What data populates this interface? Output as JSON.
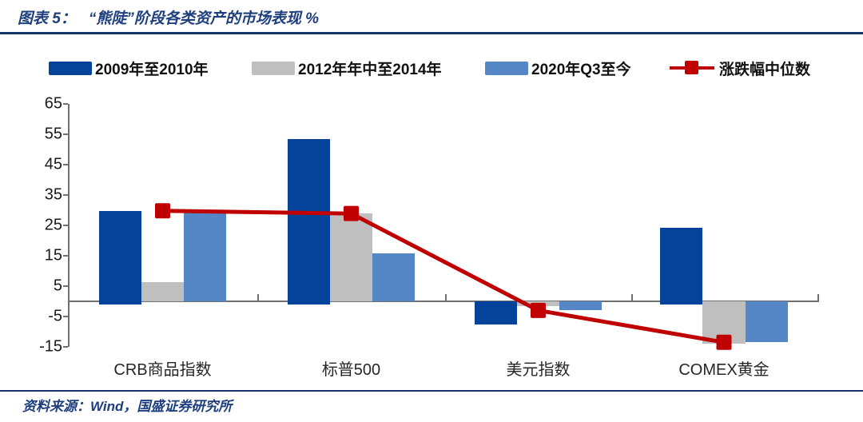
{
  "header": {
    "label": "图表 5：",
    "title": "“熊陡”阶段各类资产的市场表现 %"
  },
  "colors": {
    "bar_2009_2010": "#05429a",
    "bar_2012_2014": "#bfbfbf",
    "bar_2020q3": "#5586c5",
    "median_line": "#c00000",
    "accent_navy": "#17356b",
    "axis_gray": "#6f6f6f"
  },
  "chart_data": {
    "type": "bar",
    "categories": [
      "CRB商品指数",
      "标普500",
      "美元指数",
      "COMEX黄金"
    ],
    "series": [
      {
        "name": "2009年至2010年",
        "type": "bar",
        "color": "#05429a",
        "values": [
          29.8,
          53.5,
          -7.5,
          24.2
        ]
      },
      {
        "name": "2012年年中至2014年",
        "type": "bar",
        "color": "#bfbfbf",
        "values": [
          6.2,
          28.9,
          -1.6,
          -14.0
        ]
      },
      {
        "name": "2020年Q3至今",
        "type": "bar",
        "color": "#5586c5",
        "values": [
          30.0,
          15.7,
          -3.0,
          -13.5
        ]
      },
      {
        "name": "涨跌幅中位数",
        "type": "line",
        "color": "#c00000",
        "values": [
          29.8,
          28.9,
          -3.0,
          -13.5
        ]
      }
    ],
    "title": "“熊陡”阶段各类资产的市场表现",
    "unit": "%",
    "xlabel": "",
    "ylabel": "",
    "ylim": [
      -15,
      65
    ],
    "yticks": [
      65,
      55,
      45,
      35,
      25,
      15,
      5,
      -5,
      -15
    ],
    "grid": false,
    "legend_position": "top"
  },
  "footer": {
    "source": "资料来源：Wind，国盛证券研究所"
  }
}
